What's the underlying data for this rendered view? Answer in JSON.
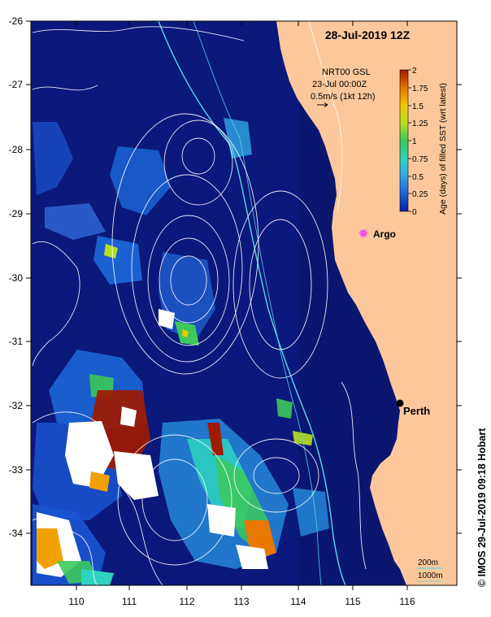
{
  "title": "28-Jul-2019 12Z",
  "info": {
    "product": "NRT00 GSL",
    "date": "23-Jul 00:00Z",
    "scale": "0.5m/s (1kt 12h)"
  },
  "colorbar": {
    "label": "Age (days) of filled SST (wrt latest)",
    "ticks": [
      "0",
      "0.25",
      "0.5",
      "0.75",
      "1",
      "1.25",
      "1.5",
      "1.75",
      "2"
    ],
    "colors": [
      "#0a1fa0",
      "#1e6fe0",
      "#2fb0e8",
      "#2ed3c0",
      "#3cc85a",
      "#b6e020",
      "#f0c800",
      "#e87800",
      "#a01a00"
    ]
  },
  "axes": {
    "lon_ticks": [
      "110",
      "111",
      "112",
      "113",
      "114",
      "115",
      "116"
    ],
    "lat_ticks": [
      "-26",
      "-27",
      "-28",
      "-29",
      "-30",
      "-31",
      "-32",
      "-33",
      "-34"
    ]
  },
  "places": {
    "argo": "Argo",
    "perth": "Perth"
  },
  "legend": {
    "c200": "200m",
    "c1000": "1000m"
  },
  "credit": "© IMOS 29-Jul-2019 09:18 Hobart",
  "colors": {
    "ocean": "#0a1670",
    "land": "#fcc89b",
    "argo": "#ff33ff",
    "isobath_200": "#5ad8e8"
  }
}
